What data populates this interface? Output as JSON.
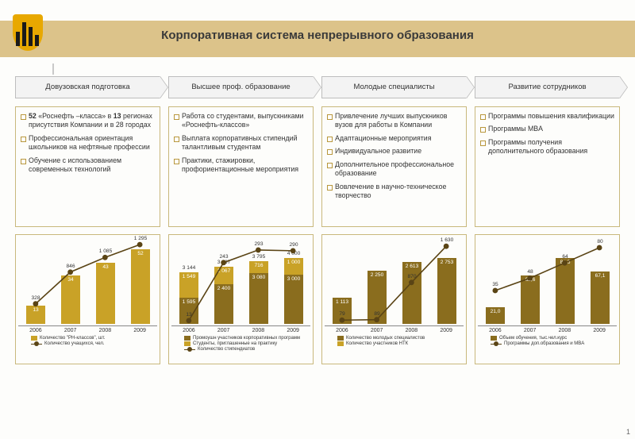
{
  "title": "Корпоративная система непрерывного образования",
  "page_number": "1",
  "colors": {
    "band": "#dcc38a",
    "border": "#c9b87c",
    "bar1": "#8a6d1e",
    "bar2": "#c9a227",
    "bar3": "#e3c96a",
    "line": "#5a4415",
    "tab_bg": "#f3f3f3"
  },
  "columns": [
    {
      "tab": "Довузовская подготовка",
      "bullets": [
        "<b>52</b> «Роснефть –класса» в <b>13</b> регионах присутствия Компании и в 28 городах",
        "Профессиональная ориентация школьников на нефтяные профессии",
        "Обучение с использованием современных технологий"
      ],
      "chart": {
        "type": "bar+line",
        "years": [
          "2006",
          "2007",
          "2008",
          "2009"
        ],
        "bars": [
          [
            13
          ],
          [
            34
          ],
          [
            43
          ],
          [
            52
          ]
        ],
        "bar_colors": [
          "#c9a227"
        ],
        "bar_max": 60,
        "line": [
          328,
          846,
          1085,
          1295
        ],
        "line_max": 1400,
        "legend": [
          {
            "type": "sq",
            "color": "#c9a227",
            "label": "Количество \"РН-классов\", шт."
          },
          {
            "type": "ln",
            "label": "Количество учащихся, чел."
          }
        ]
      }
    },
    {
      "tab": "Высшее проф. образование",
      "bullets": [
        "Работа со студентами, выпускниками «Роснефть-классов»",
        "Выплата корпоративных стипендий талантливым студентам",
        "Практики, стажировки, профориентационные мероприятия"
      ],
      "chart": {
        "type": "stacked+line",
        "years": [
          "2006",
          "2007",
          "2008",
          "2009"
        ],
        "bars": [
          [
            1595,
            1549,
            0
          ],
          [
            2400,
            1067,
            0
          ],
          [
            3080,
            716,
            0
          ],
          [
            3000,
            1000,
            0
          ]
        ],
        "totals": [
          3144,
          3467,
          3795,
          4000
        ],
        "bar_colors": [
          "#8a6d1e",
          "#c9a227",
          "#e3c96a"
        ],
        "bar_max": 5200,
        "line": [
          13,
          243,
          293,
          290
        ],
        "line_max": 340,
        "legend": [
          {
            "type": "sq",
            "color": "#8a6d1e",
            "label": "Промоушн участников корпоративных программ"
          },
          {
            "type": "sq",
            "color": "#c9a227",
            "label": "Студенты, приглашенные на практику"
          },
          {
            "type": "ln",
            "label": "Количество стипендиатов"
          }
        ]
      }
    },
    {
      "tab": "Молодые специалисты",
      "bullets": [
        "Привлечение лучших выпускников вузов для работы в Компании",
        "Адаптационные мероприятия",
        "Индивидуальное развитие",
        "Дополнительное профессиональное образование",
        "Вовлечение в научно-техническое творчество"
      ],
      "chart": {
        "type": "bar+line",
        "years": [
          "2006",
          "2007",
          "2008",
          "2009"
        ],
        "bars": [
          [
            1113
          ],
          [
            2250
          ],
          [
            2613
          ],
          [
            2753
          ]
        ],
        "bar_colors": [
          "#8a6d1e"
        ],
        "bar_max": 3600,
        "line": [
          79,
          89,
          870,
          1630
        ],
        "line_max": 1800,
        "legend": [
          {
            "type": "sq",
            "color": "#8a6d1e",
            "label": "Количество молодых специалистов"
          },
          {
            "type": "sq",
            "color": "#c9a227",
            "label": "Количество участников НТК"
          }
        ]
      }
    },
    {
      "tab": "Развитие сотрудников",
      "bullets": [
        "Программы повышения квалификации",
        "Программы MBA",
        "Программы получения дополнительного образования"
      ],
      "chart": {
        "type": "bar+line",
        "years": [
          "2006",
          "2007",
          "2008",
          "2009"
        ],
        "bars": [
          [
            21.0
          ],
          [
            62.6
          ],
          [
            84.5
          ],
          [
            67.1
          ]
        ],
        "bar_colors": [
          "#8a6d1e"
        ],
        "bar_max": 110,
        "bar_fmt": "fixed1",
        "line": [
          35,
          48,
          64,
          80
        ],
        "line_max": 90,
        "legend": [
          {
            "type": "sq",
            "color": "#8a6d1e",
            "label": "Объем обучения, тыс.чел.курс"
          },
          {
            "type": "ln",
            "label": "Программы доп.образования и MBA"
          }
        ]
      }
    }
  ]
}
